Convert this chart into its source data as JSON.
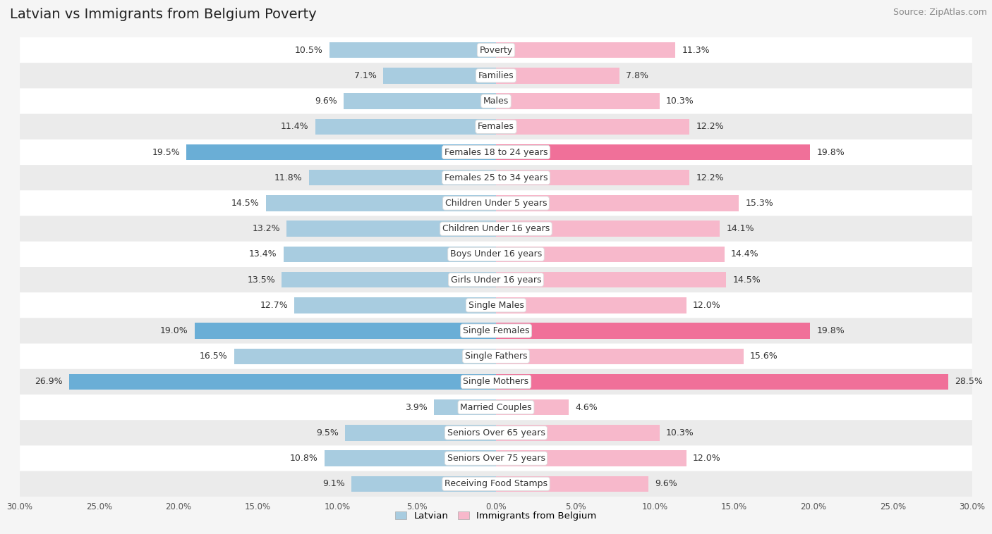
{
  "title": "Latvian vs Immigrants from Belgium Poverty",
  "source": "Source: ZipAtlas.com",
  "categories": [
    "Poverty",
    "Families",
    "Males",
    "Females",
    "Females 18 to 24 years",
    "Females 25 to 34 years",
    "Children Under 5 years",
    "Children Under 16 years",
    "Boys Under 16 years",
    "Girls Under 16 years",
    "Single Males",
    "Single Females",
    "Single Fathers",
    "Single Mothers",
    "Married Couples",
    "Seniors Over 65 years",
    "Seniors Over 75 years",
    "Receiving Food Stamps"
  ],
  "latvian": [
    10.5,
    7.1,
    9.6,
    11.4,
    19.5,
    11.8,
    14.5,
    13.2,
    13.4,
    13.5,
    12.7,
    19.0,
    16.5,
    26.9,
    3.9,
    9.5,
    10.8,
    9.1
  ],
  "immigrants": [
    11.3,
    7.8,
    10.3,
    12.2,
    19.8,
    12.2,
    15.3,
    14.1,
    14.4,
    14.5,
    12.0,
    19.8,
    15.6,
    28.5,
    4.6,
    10.3,
    12.0,
    9.6
  ],
  "latvian_color_normal": "#a8cce0",
  "latvian_color_highlight": "#6aaed6",
  "immigrant_color_normal": "#f7b8cb",
  "immigrant_color_highlight": "#f07099",
  "highlight_threshold": 19.0,
  "latvian_label": "Latvian",
  "immigrant_label": "Immigrants from Belgium",
  "bar_height": 0.62,
  "axis_limit": 30.0,
  "fig_bg": "#f5f5f5",
  "row_even_bg": "#ffffff",
  "row_odd_bg": "#ebebeb",
  "title_fontsize": 14,
  "source_fontsize": 9,
  "label_fontsize": 9,
  "tick_fontsize": 8.5
}
